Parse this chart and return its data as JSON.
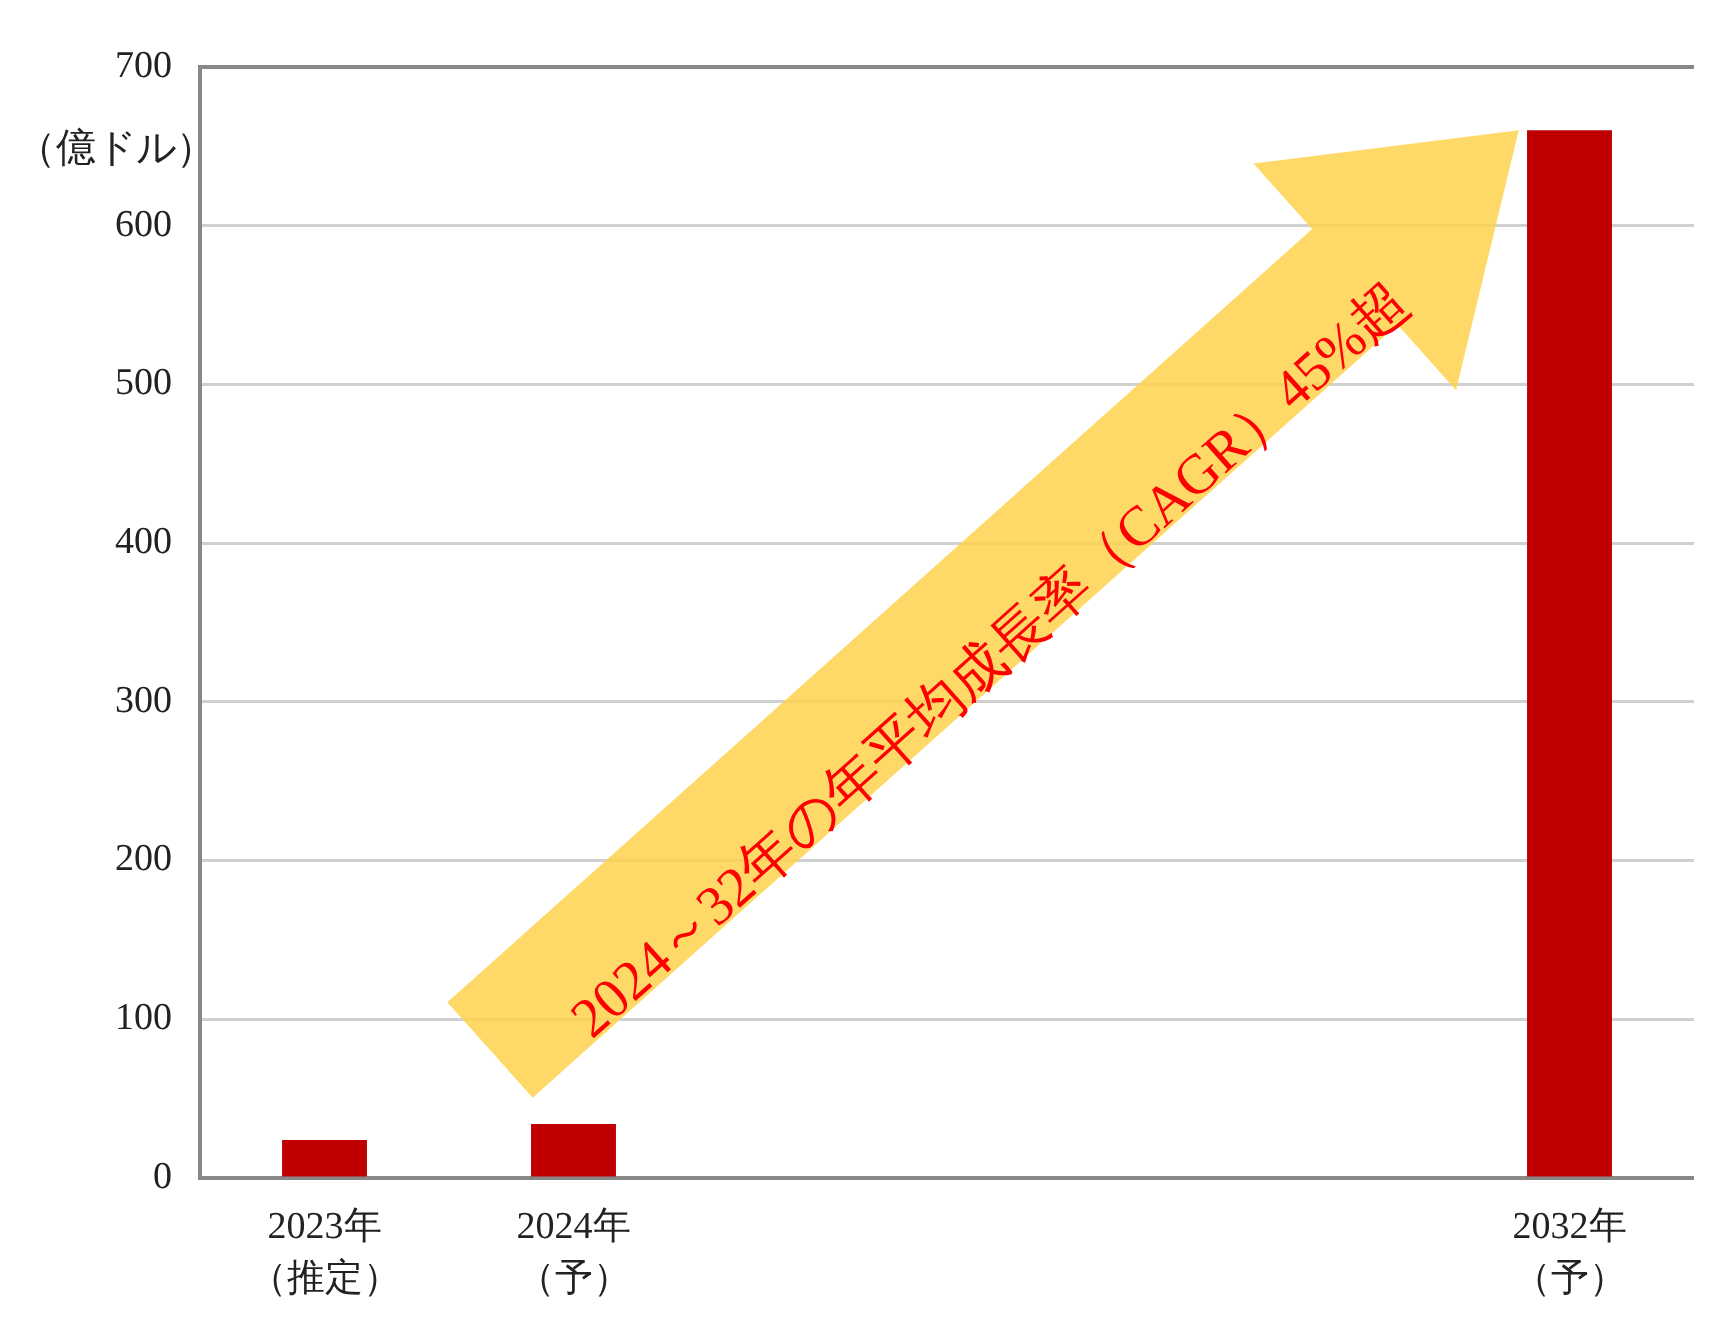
{
  "chart_data": {
    "type": "bar",
    "ylabel": "（億ドル）",
    "categories": [
      "2023年（推定）",
      "2024年（予）",
      null,
      null,
      null,
      "2032年（予）"
    ],
    "values": [
      24,
      34,
      null,
      null,
      null,
      660
    ],
    "color": "#c00000",
    "ylim": [
      0,
      700
    ],
    "yticks": [
      0,
      100,
      200,
      300,
      400,
      500,
      600,
      700
    ],
    "grid": "y",
    "annotations": [
      "2024～32年の年平均成長率（CAGR）45%超"
    ]
  }
}
